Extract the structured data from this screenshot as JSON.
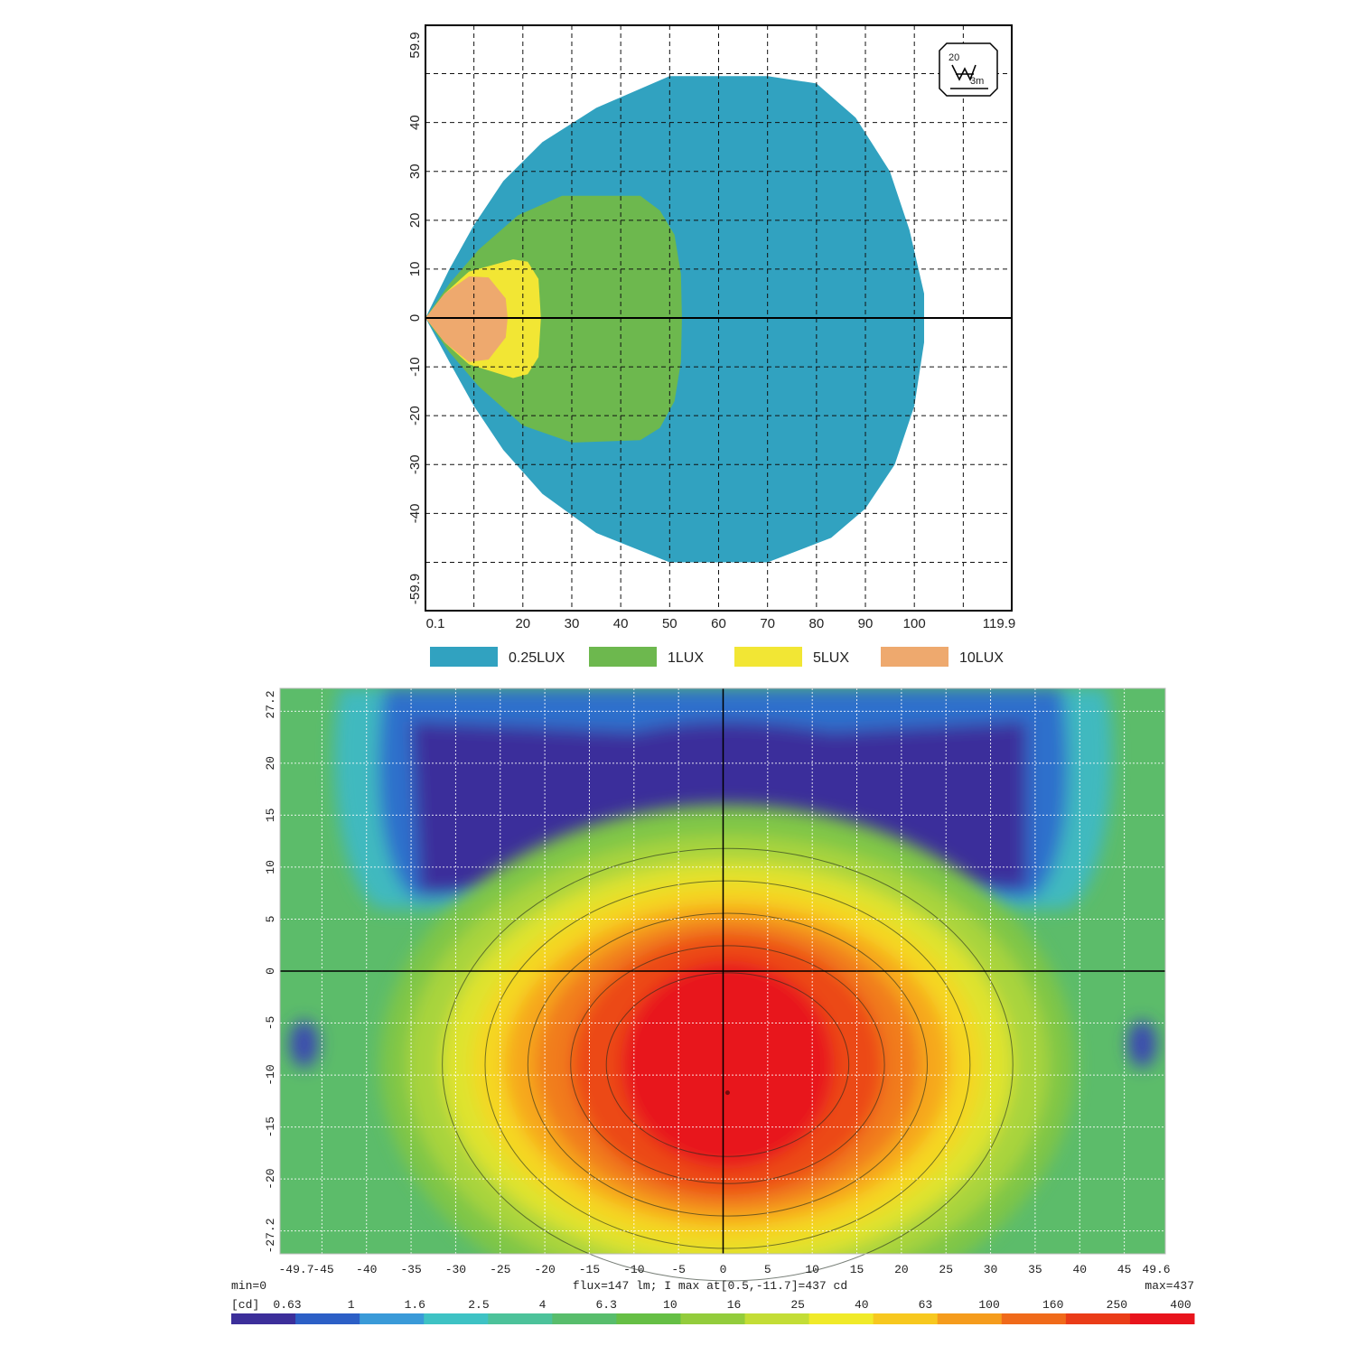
{
  "chart_data": [
    {
      "type": "area",
      "description_kind": "isolux diagram",
      "x_ticks": [
        "0.1",
        "20",
        "30",
        "40",
        "50",
        "60",
        "70",
        "80",
        "90",
        "100",
        "119.9"
      ],
      "y_ticks": [
        "59.9",
        "40",
        "30",
        "20",
        "10",
        "0",
        "-10",
        "-20",
        "-30",
        "-40",
        "-59.9"
      ],
      "xlim": [
        0.1,
        119.9
      ],
      "ylim": [
        -59.9,
        59.9
      ],
      "grid": true,
      "legend_position": "bottom",
      "badge": {
        "top_text": "20",
        "side_text": "3m"
      },
      "series": [
        {
          "name": "0.25LUX",
          "color": "#31a2c0",
          "outline": [
            [
              0.1,
              0
            ],
            [
              5,
              10
            ],
            [
              10,
              19
            ],
            [
              16,
              28
            ],
            [
              24,
              36
            ],
            [
              35,
              43
            ],
            [
              50,
              49.5
            ],
            [
              70,
              49.5
            ],
            [
              80,
              48
            ],
            [
              88,
              41
            ],
            [
              95,
              30
            ],
            [
              99,
              18
            ],
            [
              102,
              5
            ],
            [
              102,
              -5
            ],
            [
              100,
              -18
            ],
            [
              96,
              -30
            ],
            [
              90,
              -39
            ],
            [
              83,
              -45
            ],
            [
              70,
              -50
            ],
            [
              50,
              -50
            ],
            [
              35,
              -44
            ],
            [
              24,
              -36
            ],
            [
              16,
              -27
            ],
            [
              10,
              -18
            ],
            [
              5,
              -9
            ]
          ]
        },
        {
          "name": "1LUX",
          "color": "#6db84e",
          "outline": [
            [
              0.1,
              0
            ],
            [
              5,
              7
            ],
            [
              11,
              14
            ],
            [
              19,
              21
            ],
            [
              28,
              25
            ],
            [
              44,
              25
            ],
            [
              48,
              22
            ],
            [
              51,
              17
            ],
            [
              52.3,
              9
            ],
            [
              52.5,
              0
            ],
            [
              52.3,
              -9
            ],
            [
              51,
              -17
            ],
            [
              48,
              -22.5
            ],
            [
              44,
              -25
            ],
            [
              30,
              -25.5
            ],
            [
              20,
              -22
            ],
            [
              11,
              -14
            ],
            [
              5,
              -7
            ]
          ]
        },
        {
          "name": "5LUX",
          "color": "#f2e634",
          "outline": [
            [
              0.1,
              0
            ],
            [
              4,
              5
            ],
            [
              9,
              9.5
            ],
            [
              18,
              12
            ],
            [
              21,
              11.5
            ],
            [
              23.2,
              8
            ],
            [
              23.7,
              0
            ],
            [
              23.2,
              -8
            ],
            [
              21,
              -11.5
            ],
            [
              18,
              -12.3
            ],
            [
              9,
              -9.5
            ],
            [
              4,
              -5
            ]
          ]
        },
        {
          "name": "10LUX",
          "color": "#eea96e",
          "outline": [
            [
              0.1,
              0
            ],
            [
              4,
              5
            ],
            [
              9,
              8.5
            ],
            [
              13,
              8.3
            ],
            [
              16.5,
              4
            ],
            [
              16.9,
              0
            ],
            [
              16.5,
              -4
            ],
            [
              13,
              -8.5
            ],
            [
              9,
              -9
            ],
            [
              4,
              -5
            ]
          ]
        }
      ]
    },
    {
      "type": "heatmap",
      "description_kind": "luminous intensity distribution",
      "unit_label": "[cd]",
      "x_ticks": [
        "-49.7",
        "-45",
        "-40",
        "-35",
        "-30",
        "-25",
        "-20",
        "-15",
        "-10",
        "-5",
        "0",
        "5",
        "10",
        "15",
        "20",
        "25",
        "30",
        "35",
        "40",
        "45",
        "49.6"
      ],
      "y_ticks": [
        "27.2",
        "20",
        "15",
        "10",
        "5",
        "0",
        "-5",
        "-10",
        "-15",
        "-20",
        "-27.2"
      ],
      "xlim": [
        -49.7,
        49.6
      ],
      "ylim": [
        -27.2,
        27.2
      ],
      "min_label": "min=0",
      "max_label": "max=437",
      "info_label": "flux=147 lm; I max at[0.5,-11.7]=437 cd",
      "peak": {
        "x": 0.5,
        "y": -11.7,
        "value": 437
      },
      "flux_lm": 147,
      "scale_values": [
        "0.63",
        "1",
        "1.6",
        "2.5",
        "4",
        "6.3",
        "10",
        "16",
        "25",
        "40",
        "63",
        "100",
        "160",
        "250",
        "400"
      ],
      "scale_colors": [
        "#3c2f9a",
        "#2c5fc6",
        "#3a9ad8",
        "#3ec2c4",
        "#4cc29a",
        "#58bd6c",
        "#66bf45",
        "#93cc3c",
        "#c3dd36",
        "#f0ea2a",
        "#f7c81f",
        "#f59c1d",
        "#f06a1a",
        "#ea3c18",
        "#e8141c"
      ],
      "grid": true
    }
  ]
}
